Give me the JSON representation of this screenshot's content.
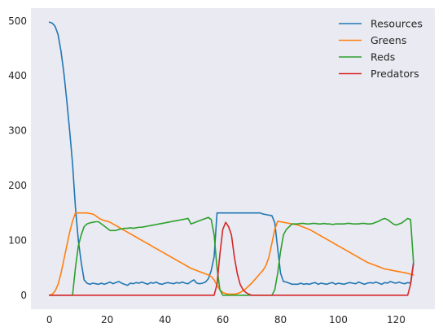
{
  "chart_data": {
    "type": "line",
    "title": "",
    "xlabel": "",
    "ylabel": "",
    "xlim": [
      -6.4,
      133.4
    ],
    "ylim": [
      -25.5,
      523.5
    ],
    "xticks": [
      0,
      20,
      40,
      60,
      80,
      100,
      120
    ],
    "yticks": [
      0,
      100,
      200,
      300,
      400,
      500
    ],
    "grid": false,
    "background": "#eaeaf2",
    "legend_position": "top-right",
    "x": [
      0,
      1,
      2,
      3,
      4,
      5,
      6,
      7,
      8,
      9,
      10,
      11,
      12,
      13,
      14,
      15,
      16,
      17,
      18,
      19,
      20,
      21,
      22,
      23,
      24,
      25,
      26,
      27,
      28,
      29,
      30,
      31,
      32,
      33,
      34,
      35,
      36,
      37,
      38,
      39,
      40,
      41,
      42,
      43,
      44,
      45,
      46,
      47,
      48,
      49,
      50,
      51,
      52,
      53,
      54,
      55,
      56,
      57,
      58,
      59,
      60,
      61,
      62,
      63,
      64,
      65,
      66,
      67,
      68,
      69,
      70,
      71,
      72,
      73,
      74,
      75,
      76,
      77,
      78,
      79,
      80,
      81,
      82,
      83,
      84,
      85,
      86,
      87,
      88,
      89,
      90,
      91,
      92,
      93,
      94,
      95,
      96,
      97,
      98,
      99,
      100,
      101,
      102,
      103,
      104,
      105,
      106,
      107,
      108,
      109,
      110,
      111,
      112,
      113,
      114,
      115,
      116,
      117,
      118,
      119,
      120,
      121,
      122,
      123,
      124,
      125,
      126
    ],
    "series": [
      {
        "name": "Resources",
        "color": "#1f77b4",
        "values": [
          498,
          496,
          490,
          475,
          445,
          405,
          355,
          300,
          240,
          160,
          100,
          60,
          28,
          22,
          20,
          22,
          21,
          20,
          22,
          20,
          22,
          24,
          21,
          23,
          25,
          22,
          20,
          18,
          22,
          21,
          23,
          22,
          24,
          22,
          20,
          23,
          22,
          24,
          21,
          20,
          22,
          23,
          22,
          21,
          23,
          22,
          24,
          22,
          21,
          25,
          28,
          22,
          21,
          22,
          24,
          30,
          45,
          70,
          150,
          150,
          150,
          150,
          150,
          150,
          150,
          150,
          150,
          150,
          150,
          150,
          150,
          150,
          150,
          150,
          148,
          147,
          146,
          145,
          132,
          85,
          40,
          25,
          24,
          22,
          20,
          20,
          20,
          22,
          20,
          21,
          20,
          22,
          23,
          20,
          22,
          21,
          20,
          22,
          23,
          20,
          22,
          21,
          20,
          22,
          23,
          22,
          21,
          24,
          22,
          20,
          22,
          23,
          22,
          24,
          22,
          20,
          23,
          22,
          25,
          23,
          22,
          24,
          22,
          21,
          23,
          22,
          60
        ]
      },
      {
        "name": "Greens",
        "color": "#ff7f0e",
        "values": [
          0,
          2,
          8,
          20,
          40,
          65,
          90,
          115,
          135,
          150,
          150,
          150,
          150,
          150,
          149,
          148,
          145,
          141,
          138,
          136,
          135,
          133,
          130,
          127,
          124,
          121,
          118,
          115,
          112,
          109,
          106,
          103,
          100,
          97,
          94,
          91,
          88,
          85,
          82,
          79,
          76,
          73,
          70,
          67,
          64,
          61,
          58,
          55,
          52,
          49,
          47,
          45,
          43,
          41,
          39,
          37,
          34,
          28,
          18,
          10,
          5,
          3,
          2,
          2,
          2,
          3,
          5,
          8,
          12,
          17,
          22,
          28,
          34,
          40,
          46,
          55,
          70,
          95,
          120,
          135,
          134,
          133,
          132,
          131,
          130,
          129,
          128,
          126,
          124,
          122,
          120,
          117,
          114,
          111,
          108,
          105,
          102,
          99,
          96,
          93,
          90,
          87,
          84,
          81,
          78,
          75,
          72,
          69,
          66,
          63,
          60,
          58,
          56,
          54,
          52,
          50,
          48,
          47,
          46,
          45,
          44,
          43,
          42,
          41,
          40,
          38,
          37
        ]
      },
      {
        "name": "Reds",
        "color": "#2ca02c",
        "values": [
          0,
          0,
          0,
          0,
          0,
          0,
          0,
          0,
          0,
          50,
          90,
          110,
          125,
          130,
          132,
          133,
          134,
          134,
          130,
          126,
          122,
          118,
          118,
          118,
          120,
          121,
          122,
          122,
          123,
          122,
          123,
          124,
          124,
          125,
          126,
          127,
          128,
          129,
          130,
          131,
          132,
          133,
          134,
          135,
          136,
          137,
          138,
          139,
          140,
          130,
          132,
          134,
          136,
          138,
          140,
          142,
          138,
          110,
          50,
          10,
          0,
          0,
          0,
          0,
          0,
          0,
          0,
          0,
          0,
          0,
          0,
          0,
          0,
          0,
          0,
          0,
          0,
          0,
          10,
          40,
          80,
          110,
          120,
          125,
          130,
          130,
          130,
          131,
          131,
          130,
          130,
          131,
          131,
          130,
          130,
          131,
          130,
          130,
          129,
          130,
          130,
          130,
          130,
          131,
          131,
          130,
          130,
          130,
          131,
          131,
          130,
          130,
          131,
          133,
          135,
          138,
          140,
          138,
          134,
          130,
          128,
          130,
          132,
          136,
          140,
          138,
          60
        ]
      },
      {
        "name": "Predators",
        "color": "#d62728",
        "values": [
          0,
          0,
          0,
          0,
          0,
          0,
          0,
          0,
          0,
          0,
          0,
          0,
          0,
          0,
          0,
          0,
          0,
          0,
          0,
          0,
          0,
          0,
          0,
          0,
          0,
          0,
          0,
          0,
          0,
          0,
          0,
          0,
          0,
          0,
          0,
          0,
          0,
          0,
          0,
          0,
          0,
          0,
          0,
          0,
          0,
          0,
          0,
          0,
          0,
          0,
          0,
          0,
          0,
          0,
          0,
          0,
          0,
          0,
          20,
          75,
          120,
          133,
          125,
          110,
          70,
          40,
          20,
          10,
          5,
          2,
          0,
          0,
          0,
          0,
          0,
          0,
          0,
          0,
          0,
          0,
          0,
          0,
          0,
          0,
          0,
          0,
          0,
          0,
          0,
          0,
          0,
          0,
          0,
          0,
          0,
          0,
          0,
          0,
          0,
          0,
          0,
          0,
          0,
          0,
          0,
          0,
          0,
          0,
          0,
          0,
          0,
          0,
          0,
          0,
          0,
          0,
          0,
          0,
          0,
          0,
          0,
          0,
          0,
          0,
          0,
          20,
          57
        ]
      }
    ]
  }
}
